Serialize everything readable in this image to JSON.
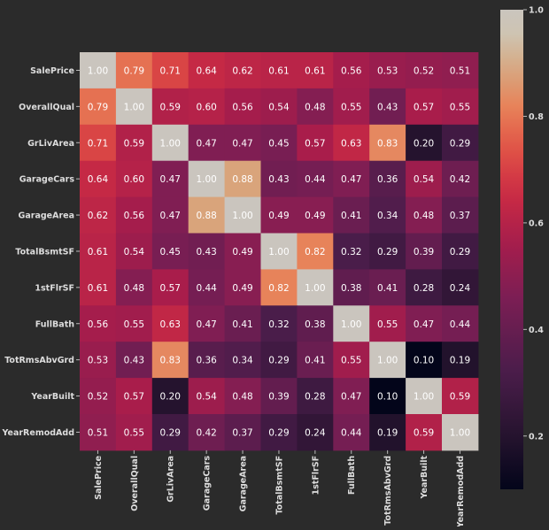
{
  "chart_data": {
    "type": "heatmap",
    "title": "",
    "xlabel": "",
    "ylabel": "",
    "grid": false,
    "legend": "colorbar right",
    "categories": [
      "SalePrice",
      "OverallQual",
      "GrLivArea",
      "GarageCars",
      "GarageArea",
      "TotalBsmtSF",
      "1stFlrSF",
      "FullBath",
      "TotRmsAbvGrd",
      "YearBuilt",
      "YearRemodAdd"
    ],
    "values": [
      [
        1.0,
        0.79,
        0.71,
        0.64,
        0.62,
        0.61,
        0.61,
        0.56,
        0.53,
        0.52,
        0.51
      ],
      [
        0.79,
        1.0,
        0.59,
        0.6,
        0.56,
        0.54,
        0.48,
        0.55,
        0.43,
        0.57,
        0.55
      ],
      [
        0.71,
        0.59,
        1.0,
        0.47,
        0.47,
        0.45,
        0.57,
        0.63,
        0.83,
        0.2,
        0.29
      ],
      [
        0.64,
        0.6,
        0.47,
        1.0,
        0.88,
        0.43,
        0.44,
        0.47,
        0.36,
        0.54,
        0.42
      ],
      [
        0.62,
        0.56,
        0.47,
        0.88,
        1.0,
        0.49,
        0.49,
        0.41,
        0.34,
        0.48,
        0.37
      ],
      [
        0.61,
        0.54,
        0.45,
        0.43,
        0.49,
        1.0,
        0.82,
        0.32,
        0.29,
        0.39,
        0.29
      ],
      [
        0.61,
        0.48,
        0.57,
        0.44,
        0.49,
        0.82,
        1.0,
        0.38,
        0.41,
        0.28,
        0.24
      ],
      [
        0.56,
        0.55,
        0.63,
        0.47,
        0.41,
        0.32,
        0.38,
        1.0,
        0.55,
        0.47,
        0.44
      ],
      [
        0.53,
        0.43,
        0.83,
        0.36,
        0.34,
        0.29,
        0.41,
        0.55,
        1.0,
        0.1,
        0.19
      ],
      [
        0.52,
        0.57,
        0.2,
        0.54,
        0.48,
        0.39,
        0.28,
        0.47,
        0.1,
        1.0,
        0.59
      ],
      [
        0.51,
        0.55,
        0.29,
        0.42,
        0.37,
        0.29,
        0.24,
        0.44,
        0.19,
        0.59,
        1.0
      ]
    ],
    "value_range": [
      0.1,
      1.0
    ],
    "colorbar": {
      "ticks": [
        0.2,
        0.4,
        0.6,
        0.8,
        1.0
      ],
      "tick_labels": [
        "0.2",
        "0.4",
        "0.6",
        "0.8",
        "1.0"
      ],
      "colormap": "rocket"
    },
    "colors": {
      "background": "#2b2b2b",
      "text": "#ffffff",
      "label_text": "#dddddd"
    }
  }
}
